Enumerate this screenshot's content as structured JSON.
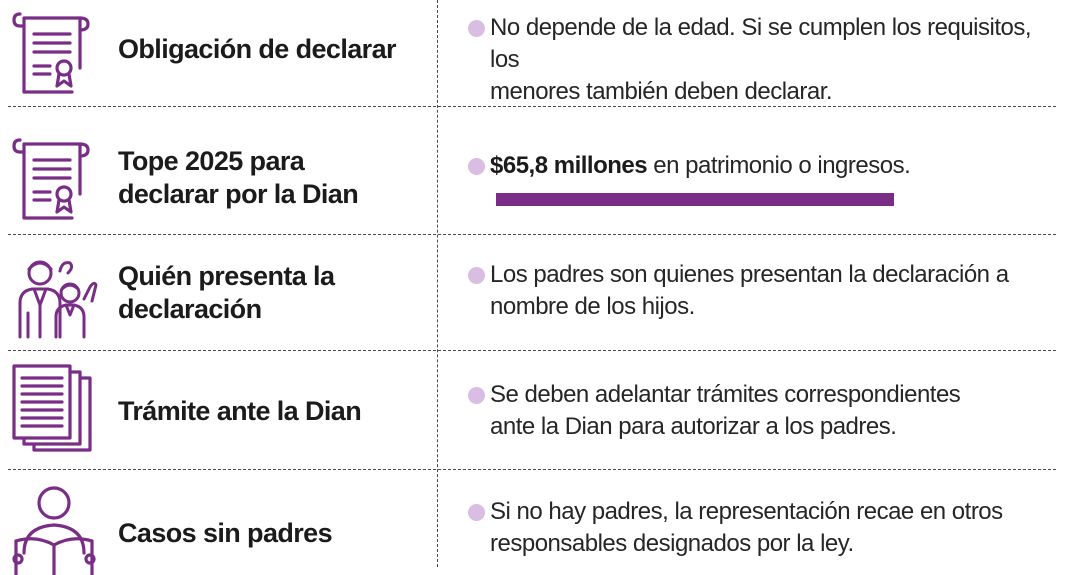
{
  "rows": [
    {
      "icon": "certificate-document-icon",
      "label_lines": [
        "Obligación de declarar"
      ],
      "desc_lines": [
        "No depende de la edad. Si se cumplen los requisitos, los",
        "menores también deben declarar."
      ]
    },
    {
      "icon": "certificate-document-icon",
      "label_lines": [
        "Tope 2025 para",
        "declarar por la Dian"
      ],
      "desc_strong": "$65,8 millones",
      "desc_rest": " en patrimonio o ingresos.",
      "bar_value": 65.8,
      "bar_unit": "millones"
    },
    {
      "icon": "family-icon",
      "label_lines": [
        "Quién presenta la",
        "declaración"
      ],
      "desc_lines": [
        "Los padres son quienes presentan la declaración a",
        "nombre de los hijos."
      ]
    },
    {
      "icon": "stacked-documents-icon",
      "label_lines": [
        "Trámite ante la Dian"
      ],
      "desc_lines": [
        "Se deben adelantar trámites correspondientes",
        "ante la Dian para autorizar a los padres."
      ]
    },
    {
      "icon": "person-reading-icon",
      "label_lines": [
        "Casos sin padres"
      ],
      "desc_lines": [
        "Si no hay padres, la representación recae en otros",
        "responsables designados por la ley."
      ]
    }
  ],
  "colors": {
    "accent": "#7a2d86",
    "bullet": "#d9bde2",
    "text": "#1b1b1b",
    "divider": "#4a4a4a"
  }
}
